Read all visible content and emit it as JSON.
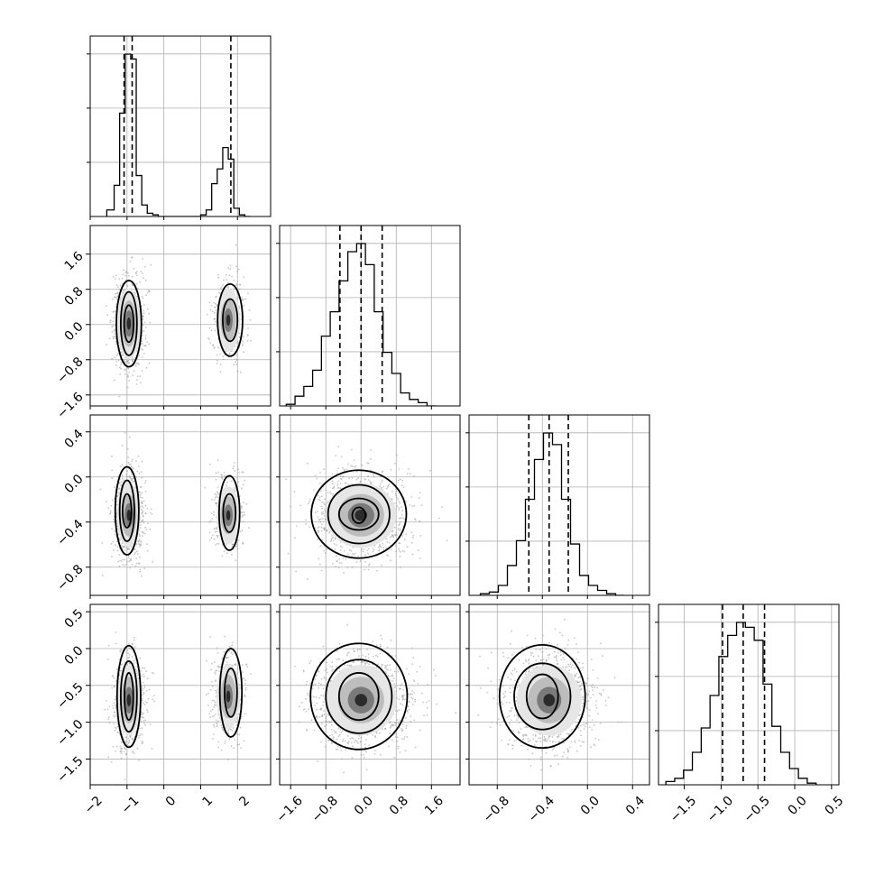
{
  "chart_data": {
    "type": "corner",
    "title": "",
    "xlabel": "",
    "ylabel": "",
    "parameters": [
      {
        "index": 0,
        "range": [
          -2,
          2.9
        ],
        "ticks": [
          -2,
          -1,
          0,
          1,
          2
        ],
        "tick_labels": [
          "−2",
          "−1",
          "0",
          "1",
          "2"
        ],
        "quantiles": [
          -1.08,
          -0.86,
          1.82
        ],
        "hist": {
          "bins": [
            -1.55,
            -1.35,
            -1.2,
            -1.05,
            -0.9,
            -0.75,
            -0.6,
            -0.45,
            -0.3,
            -0.15,
            0.0,
            1.0,
            1.15,
            1.3,
            1.45,
            1.6,
            1.75,
            1.9,
            2.05,
            2.2,
            2.35
          ],
          "counts": [
            0.04,
            0.19,
            0.63,
            0.99,
            0.96,
            0.25,
            0.07,
            0.02,
            0.01,
            0.0,
            0.0,
            0.01,
            0.04,
            0.2,
            0.29,
            0.42,
            0.35,
            0.05,
            0.01,
            0.0
          ]
        }
      },
      {
        "index": 1,
        "range": [
          -1.85,
          2.25
        ],
        "ticks": [
          -1.6,
          -0.8,
          0.0,
          0.8,
          1.6
        ],
        "tick_labels": [
          "−1.6",
          "−0.8",
          "0.0",
          "0.8",
          "1.6"
        ],
        "quantiles": [
          -0.48,
          0.0,
          0.48
        ],
        "hist": {
          "bins": [
            -1.7,
            -1.5,
            -1.3,
            -1.1,
            -0.9,
            -0.7,
            -0.5,
            -0.3,
            -0.1,
            0.1,
            0.3,
            0.5,
            0.7,
            0.9,
            1.1,
            1.3,
            1.5,
            1.7
          ],
          "counts": [
            0.01,
            0.06,
            0.12,
            0.22,
            0.43,
            0.58,
            0.77,
            0.95,
            1.0,
            0.87,
            0.58,
            0.33,
            0.2,
            0.08,
            0.04,
            0.02,
            0.0
          ]
        }
      },
      {
        "index": 2,
        "range": [
          -1.05,
          0.55
        ],
        "ticks": [
          -0.8,
          -0.4,
          0.0,
          0.4
        ],
        "tick_labels": [
          "−0.8",
          "−0.4",
          "0.0",
          "0.4"
        ],
        "quantiles": [
          -0.52,
          -0.34,
          -0.17
        ],
        "hist": {
          "bins": [
            -0.95,
            -0.87,
            -0.79,
            -0.71,
            -0.63,
            -0.55,
            -0.47,
            -0.39,
            -0.31,
            -0.23,
            -0.15,
            -0.07,
            0.01,
            0.09,
            0.17,
            0.25,
            0.33
          ],
          "counts": [
            0.01,
            0.02,
            0.06,
            0.18,
            0.33,
            0.58,
            0.82,
            0.98,
            0.91,
            0.58,
            0.31,
            0.12,
            0.06,
            0.03,
            0.01,
            0.0
          ]
        }
      },
      {
        "index": 3,
        "range": [
          -1.85,
          0.6
        ],
        "ticks": [
          -1.5,
          -1.0,
          -0.5,
          0.0,
          0.5
        ],
        "tick_labels": [
          "−1.5",
          "−1.0",
          "−0.5",
          "0.0",
          "0.5"
        ],
        "quantiles": [
          -0.98,
          -0.7,
          -0.41
        ],
        "hist": {
          "bins": [
            -1.75,
            -1.63,
            -1.51,
            -1.39,
            -1.27,
            -1.15,
            -1.03,
            -0.91,
            -0.79,
            -0.67,
            -0.55,
            -0.43,
            -0.31,
            -0.19,
            -0.07,
            0.05,
            0.17,
            0.29
          ],
          "counts": [
            0.02,
            0.04,
            0.09,
            0.2,
            0.35,
            0.55,
            0.79,
            0.92,
            1.0,
            0.97,
            0.89,
            0.62,
            0.36,
            0.2,
            0.1,
            0.04,
            0.01
          ]
        }
      }
    ],
    "pairs": [
      {
        "x": 0,
        "y": 1,
        "clusters": [
          {
            "cx": -0.95,
            "cy": 0.02,
            "sx": 0.2,
            "sy": 0.5,
            "n": 700
          },
          {
            "cx": 1.75,
            "cy": 0.1,
            "sx": 0.2,
            "sy": 0.45,
            "n": 400
          }
        ],
        "contours": [
          [
            -0.95,
            0.02,
            0.34,
            0.98
          ],
          [
            -0.95,
            0.02,
            0.22,
            0.72
          ],
          [
            -0.95,
            0.02,
            0.13,
            0.42
          ],
          [
            1.8,
            0.1,
            0.34,
            0.82
          ],
          [
            1.8,
            0.1,
            0.2,
            0.48
          ]
        ]
      },
      {
        "x": 0,
        "y": 2,
        "clusters": [
          {
            "cx": -0.95,
            "cy": -0.34,
            "sx": 0.2,
            "sy": 0.18,
            "n": 700
          },
          {
            "cx": 1.75,
            "cy": -0.34,
            "sx": 0.2,
            "sy": 0.16,
            "n": 400
          }
        ],
        "contours": [
          [
            -1.0,
            -0.3,
            0.32,
            0.39
          ],
          [
            -1.0,
            -0.3,
            0.2,
            0.27
          ],
          [
            -1.0,
            -0.3,
            0.12,
            0.15
          ],
          [
            1.78,
            -0.32,
            0.28,
            0.33
          ],
          [
            1.78,
            -0.32,
            0.17,
            0.17
          ]
        ]
      },
      {
        "x": 0,
        "y": 3,
        "clusters": [
          {
            "cx": -0.95,
            "cy": -0.7,
            "sx": 0.2,
            "sy": 0.3,
            "n": 700
          },
          {
            "cx": 1.75,
            "cy": -0.65,
            "sx": 0.2,
            "sy": 0.28,
            "n": 400
          }
        ],
        "contours": [
          [
            -0.95,
            -0.65,
            0.32,
            0.69
          ],
          [
            -0.95,
            -0.65,
            0.22,
            0.48
          ],
          [
            -0.95,
            -0.65,
            0.12,
            0.32
          ],
          [
            1.82,
            -0.6,
            0.3,
            0.6
          ],
          [
            1.82,
            -0.6,
            0.17,
            0.33
          ]
        ]
      },
      {
        "x": 1,
        "y": 2,
        "clusters": [
          {
            "cx": 0.0,
            "cy": -0.34,
            "sx": 0.5,
            "sy": 0.18,
            "n": 1100
          }
        ],
        "contours": [
          [
            -0.05,
            -0.33,
            1.08,
            0.39
          ],
          [
            -0.05,
            -0.33,
            0.7,
            0.26
          ],
          [
            -0.05,
            -0.33,
            0.45,
            0.14
          ],
          [
            -0.05,
            -0.34,
            0.15,
            0.07
          ]
        ]
      },
      {
        "x": 1,
        "y": 3,
        "clusters": [
          {
            "cx": 0.0,
            "cy": -0.7,
            "sx": 0.5,
            "sy": 0.3,
            "n": 1100
          }
        ],
        "contours": [
          [
            -0.05,
            -0.65,
            1.1,
            0.72
          ],
          [
            -0.05,
            -0.65,
            0.75,
            0.5
          ],
          [
            -0.05,
            -0.65,
            0.45,
            0.32
          ]
        ]
      },
      {
        "x": 2,
        "y": 3,
        "clusters": [
          {
            "cx": -0.34,
            "cy": -0.7,
            "sx": 0.18,
            "sy": 0.3,
            "n": 1100
          }
        ],
        "contours": [
          [
            -0.4,
            -0.65,
            0.38,
            0.7
          ],
          [
            -0.4,
            -0.65,
            0.25,
            0.45
          ],
          [
            -0.4,
            -0.65,
            0.14,
            0.3
          ]
        ]
      }
    ],
    "hist_ticks_count": 3,
    "grid": true,
    "legend": "none"
  }
}
